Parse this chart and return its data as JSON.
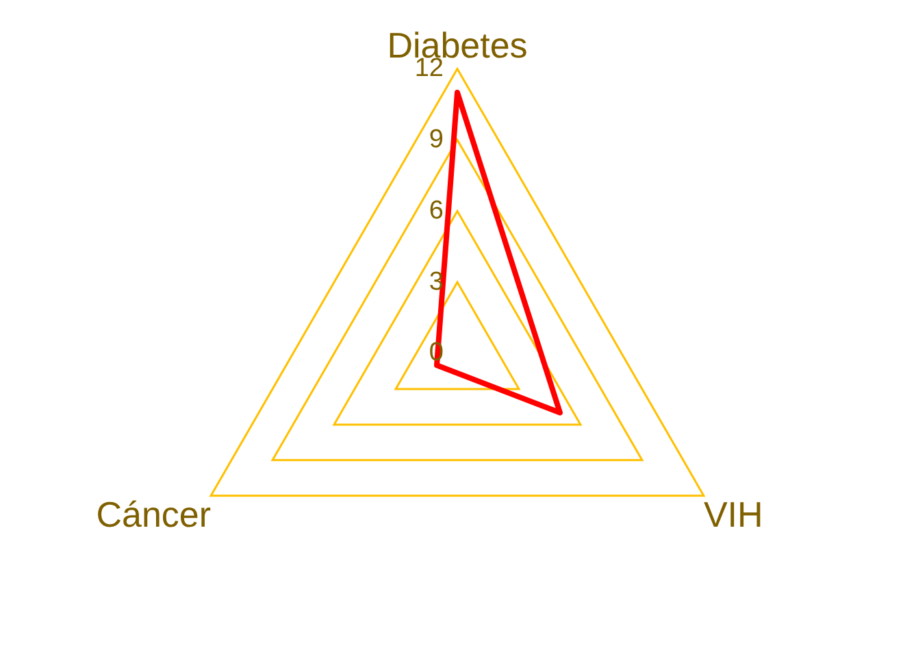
{
  "chart_data": {
    "type": "radar",
    "categories": [
      "Diabetes",
      "VIH",
      "Cáncer"
    ],
    "series": [
      {
        "color": "#ff0000",
        "values": [
          11,
          5,
          1
        ]
      }
    ],
    "ylim": [
      0,
      12
    ],
    "yticks": [
      0,
      3,
      6,
      9,
      12
    ],
    "grid": true,
    "legend": false,
    "marker": "none",
    "line_style": "solid"
  }
}
